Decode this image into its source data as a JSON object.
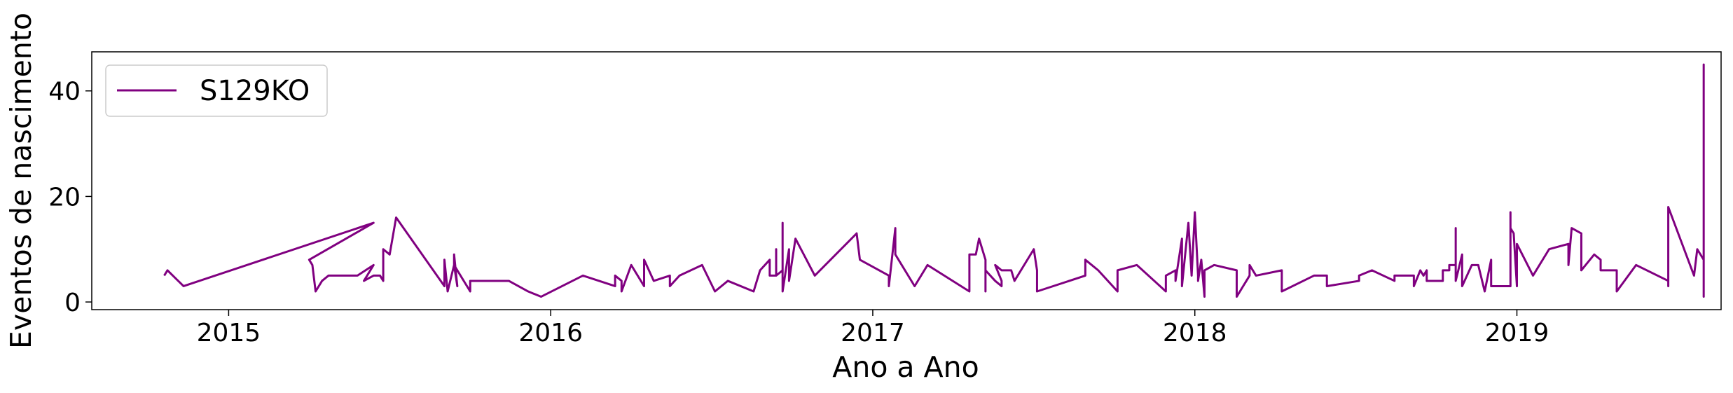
{
  "chart_data": {
    "type": "line",
    "x_label": "Ano a Ano",
    "y_label": "Eventos de nascimento",
    "x": [
      2014.8,
      2014.81,
      2014.86,
      2015.45,
      2015.25,
      2015.26,
      2015.27,
      2015.29,
      2015.31,
      2015.4,
      2015.45,
      2015.42,
      2015.45,
      2015.47,
      2015.48,
      2015.48,
      2015.5,
      2015.52,
      2015.67,
      2015.67,
      2015.68,
      2015.7,
      2015.7,
      2015.71,
      2015.7,
      2015.75,
      2015.75,
      2015.87,
      2015.93,
      2015.97,
      2016.1,
      2016.2,
      2016.2,
      2016.22,
      2016.22,
      2016.25,
      2016.29,
      2016.29,
      2016.32,
      2016.37,
      2016.37,
      2016.4,
      2016.47,
      2016.51,
      2016.55,
      2016.63,
      2016.65,
      2016.68,
      2016.68,
      2016.7,
      2016.7,
      2016.7,
      2016.72,
      2016.72,
      2016.72,
      2016.74,
      2016.74,
      2016.76,
      2016.82,
      2016.95,
      2016.96,
      2017.05,
      2017.05,
      2017.07,
      2017.07,
      2017.13,
      2017.17,
      2017.3,
      2017.3,
      2017.3,
      2017.32,
      2017.33,
      2017.35,
      2017.35,
      2017.35,
      2017.38,
      2017.4,
      2017.4,
      2017.38,
      2017.4,
      2017.43,
      2017.44,
      2017.5,
      2017.51,
      2017.51,
      2017.66,
      2017.66,
      2017.7,
      2017.76,
      2017.76,
      2017.82,
      2017.91,
      2017.91,
      2017.94,
      2017.94,
      2017.96,
      2017.96,
      2017.98,
      2017.99,
      2018.0,
      2018.01,
      2018.01,
      2018.02,
      2018.03,
      2018.03,
      2018.06,
      2018.13,
      2018.13,
      2018.17,
      2018.17,
      2018.19,
      2018.27,
      2018.27,
      2018.37,
      2018.41,
      2018.41,
      2018.51,
      2018.51,
      2018.55,
      2018.62,
      2018.62,
      2018.68,
      2018.68,
      2018.7,
      2018.71,
      2018.72,
      2018.72,
      2018.77,
      2018.77,
      2018.79,
      2018.79,
      2018.81,
      2018.81,
      2018.81,
      2018.83,
      2018.83,
      2018.86,
      2018.88,
      2018.9,
      2018.92,
      2018.92,
      2018.98,
      2018.98,
      2018.98,
      2018.99,
      2019.0,
      2019.0,
      2019.05,
      2019.1,
      2019.16,
      2019.16,
      2019.17,
      2019.2,
      2019.2,
      2019.24,
      2019.26,
      2019.26,
      2019.31,
      2019.31,
      2019.37,
      2019.47,
      2019.47,
      2019.47,
      2019.55,
      2019.56,
      2019.58,
      2019.58,
      2019.58,
      2019.58,
      2019.58
    ],
    "series": [
      {
        "name": "S129KO",
        "color": "#800080",
        "values": [
          5,
          6,
          3,
          15,
          8,
          7,
          2,
          4,
          5,
          5,
          7,
          4,
          5,
          5,
          4,
          10,
          9,
          16,
          3,
          8,
          2,
          7,
          9,
          3,
          7,
          2,
          4,
          4,
          2,
          1,
          5,
          3,
          5,
          4,
          2,
          7,
          3,
          8,
          4,
          5,
          3,
          5,
          7,
          2,
          4,
          2,
          6,
          8,
          5,
          5,
          10,
          5,
          6,
          15,
          2,
          10,
          4,
          12,
          5,
          13,
          8,
          5,
          3,
          14,
          9,
          3,
          7,
          2,
          6,
          9,
          9,
          12,
          8,
          2,
          6,
          4,
          3,
          4,
          7,
          6,
          6,
          4,
          10,
          6,
          2,
          5,
          8,
          6,
          2,
          6,
          7,
          2,
          5,
          6,
          4,
          12,
          3,
          15,
          5,
          17,
          5,
          4,
          8,
          1,
          6,
          7,
          6,
          1,
          5,
          7,
          5,
          6,
          2,
          5,
          5,
          3,
          4,
          5,
          6,
          4,
          5,
          5,
          3,
          6,
          5,
          6,
          4,
          4,
          6,
          6,
          7,
          7,
          14,
          4,
          9,
          3,
          7,
          7,
          2,
          8,
          3,
          3,
          17,
          14,
          13,
          3,
          11,
          5,
          10,
          11,
          7,
          14,
          13,
          6,
          9,
          8,
          6,
          6,
          2,
          7,
          4,
          3,
          18,
          5,
          10,
          8,
          1,
          45,
          3,
          14
        ]
      }
    ],
    "xlim": [
      2014.575,
      2019.634
    ],
    "ylim": [
      -1.45,
      47.4
    ],
    "xticks": [
      2015,
      2016,
      2017,
      2018,
      2019
    ],
    "yticks": [
      0,
      20,
      40
    ],
    "legend": "upper left"
  }
}
